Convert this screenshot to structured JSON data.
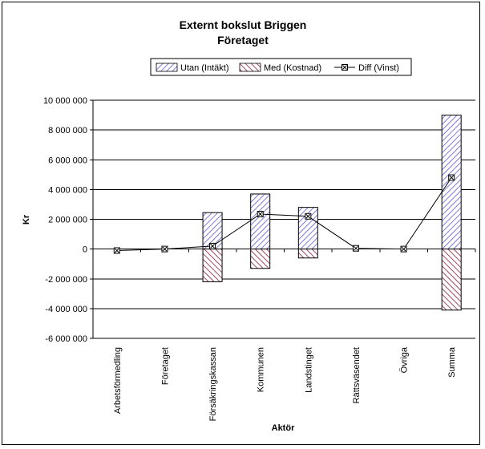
{
  "chart_data": {
    "type": "bar",
    "title": "Externt bokslut Briggen",
    "subtitle": "Företaget",
    "xlabel": "Aktör",
    "ylabel": "Kr",
    "categories": [
      "Arbetsförmedling",
      "Företaget",
      "Försäkringskassan",
      "Kommunen",
      "Landstinget",
      "Rättsväsendet",
      "Övriga",
      "Summa"
    ],
    "series": [
      {
        "name": "Utan (Intäkt)",
        "kind": "bar",
        "pattern": "blue-diagonal-hatch",
        "color": "#3a3ab0",
        "values": [
          0,
          0,
          2450000,
          3700000,
          2800000,
          0,
          0,
          9000000
        ]
      },
      {
        "name": "Med (Kostnad)",
        "kind": "bar",
        "pattern": "maroon-diagonal-hatch",
        "color": "#8b1a3a",
        "values": [
          0,
          0,
          -2200000,
          -1300000,
          -600000,
          0,
          0,
          -4100000
        ]
      },
      {
        "name": "Diff (Vinst)",
        "kind": "line",
        "marker": "x-square",
        "color": "#000000",
        "values": [
          -100000,
          0,
          200000,
          2350000,
          2200000,
          50000,
          0,
          4800000
        ]
      }
    ],
    "ylim": [
      -6000000,
      10000000
    ],
    "yticks": [
      "10 000 000",
      "8 000 000",
      "6 000 000",
      "4 000 000",
      "2 000 000",
      "0",
      "-2 000 000",
      "-4 000 000",
      "-6 000 000"
    ],
    "ytick_values": [
      10000000,
      8000000,
      6000000,
      4000000,
      2000000,
      0,
      -2000000,
      -4000000,
      -6000000
    ],
    "grid": true,
    "legend": "top"
  }
}
